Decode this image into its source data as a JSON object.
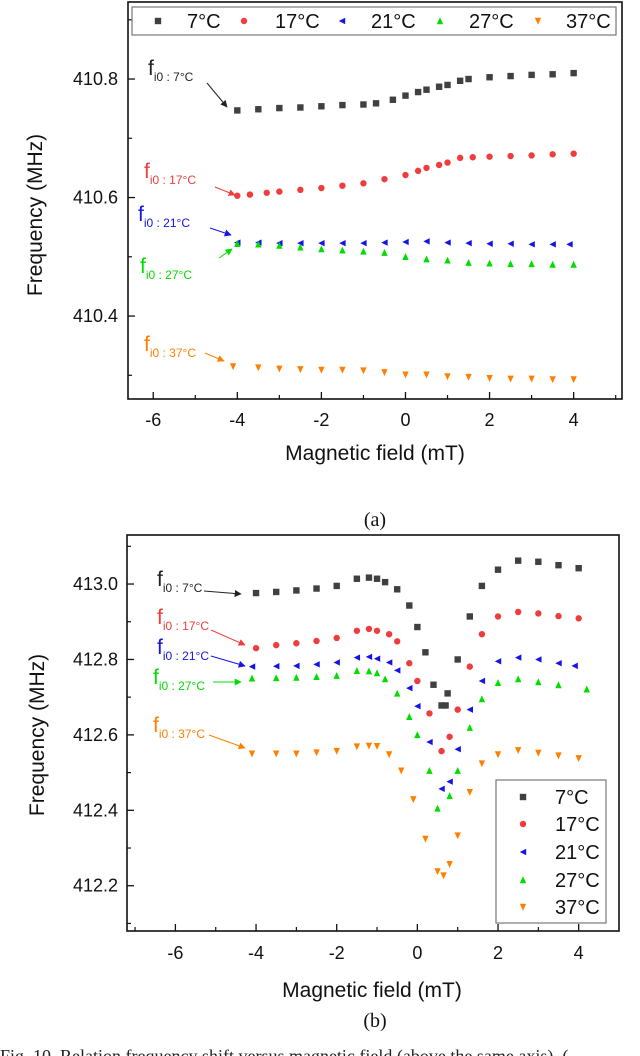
{
  "chart_data": [
    {
      "type": "scatter",
      "panel_label": "(a)",
      "xlabel": "Magnetic field (mT)",
      "ylabel": "Frequency (MHz)",
      "xlim": [
        -6.6,
        5.15
      ],
      "ylim": [
        410.26,
        410.93
      ],
      "xticks": [
        -6,
        -4,
        -2,
        0,
        2,
        4
      ],
      "xtick_labels": [
        "-6",
        "-4",
        "-2",
        "0",
        "2",
        "4"
      ],
      "yticks": [
        410.4,
        410.6,
        410.8
      ],
      "ytick_labels": [
        "410.4",
        "410.6",
        "410.8"
      ],
      "grid": false,
      "legend": {
        "placement": "top",
        "orientation": "horizontal"
      },
      "series": [
        {
          "name": "7°C",
          "marker": "square",
          "color": "#404040",
          "x": [
            -4,
            -3.5,
            -3,
            -2.5,
            -2,
            -1.5,
            -1,
            -0.7,
            -0.3,
            0,
            0.3,
            0.5,
            0.8,
            1,
            1.3,
            1.5,
            2,
            2.5,
            3,
            3.5,
            4
          ],
          "y": [
            410.747,
            410.749,
            410.751,
            410.752,
            410.754,
            410.756,
            410.757,
            410.759,
            410.765,
            410.772,
            410.778,
            410.782,
            410.787,
            410.79,
            410.797,
            410.8,
            410.803,
            410.805,
            410.807,
            410.808,
            410.81
          ]
        },
        {
          "name": "17°C",
          "marker": "circle",
          "color": "#f03c3c",
          "x": [
            -4,
            -3.7,
            -3.3,
            -3,
            -2.5,
            -2,
            -1.5,
            -1,
            -0.5,
            0,
            0.3,
            0.5,
            0.8,
            1,
            1.3,
            1.6,
            2,
            2.5,
            3,
            3.5,
            4
          ],
          "y": [
            410.603,
            410.605,
            410.608,
            410.61,
            410.613,
            410.616,
            410.62,
            410.624,
            410.631,
            410.638,
            410.645,
            410.65,
            410.655,
            410.659,
            410.667,
            410.668,
            410.669,
            410.67,
            410.671,
            410.673,
            410.674
          ]
        },
        {
          "name": "21°C",
          "marker": "triangle-left",
          "color": "#1414e6",
          "x": [
            -4,
            -3.5,
            -3,
            -2.5,
            -2,
            -1.5,
            -1,
            -0.5,
            0,
            0.5,
            1,
            1.5,
            2,
            2.5,
            3,
            3.5,
            3.9
          ],
          "y": [
            410.524,
            410.524,
            410.523,
            410.523,
            410.523,
            410.523,
            410.523,
            410.524,
            410.525,
            410.526,
            410.524,
            410.523,
            410.522,
            410.522,
            410.521,
            410.521,
            410.521
          ]
        },
        {
          "name": "27°C",
          "marker": "triangle-up",
          "color": "#00dd00",
          "x": [
            -4,
            -3.5,
            -3,
            -2.5,
            -2,
            -1.5,
            -1,
            -0.5,
            0,
            0.5,
            1,
            1.5,
            2,
            2.5,
            3,
            3.5,
            4
          ],
          "y": [
            410.522,
            410.521,
            410.519,
            410.516,
            410.513,
            410.511,
            410.509,
            410.507,
            410.5,
            410.496,
            410.494,
            410.49,
            410.489,
            410.488,
            410.488,
            410.487,
            410.487
          ]
        },
        {
          "name": "37°C",
          "marker": "triangle-down",
          "color": "#ff8000",
          "x": [
            -4.1,
            -3.5,
            -3,
            -2.5,
            -2,
            -1.5,
            -1,
            -0.5,
            0,
            0.5,
            1,
            1.5,
            2,
            2.5,
            3,
            3.5,
            4
          ],
          "y": [
            410.315,
            410.313,
            410.311,
            410.31,
            410.309,
            410.309,
            410.308,
            410.305,
            410.301,
            410.301,
            410.298,
            410.297,
            410.295,
            410.294,
            410.294,
            410.293,
            410.293
          ]
        }
      ],
      "annotations": [
        {
          "f": "f",
          "sub": "i0 : 7°C",
          "color": "#222222"
        },
        {
          "f": "f",
          "sub": "i0 : 17°C",
          "color": "#f03c3c"
        },
        {
          "f": "f",
          "sub": "i0 : 21°C",
          "color": "#1414e6"
        },
        {
          "f": "f",
          "sub": "i0 : 27°C",
          "color": "#00dd00"
        },
        {
          "f": "f",
          "sub": "i0 : 37°C",
          "color": "#ff8000"
        }
      ]
    },
    {
      "type": "scatter",
      "panel_label": "(b)",
      "xlabel": "Magnetic field (mT)",
      "ylabel": "Frequency (MHz)",
      "xlim": [
        -7.2,
        5.0
      ],
      "ylim": [
        412.08,
        413.13
      ],
      "xticks": [
        -6,
        -4,
        -2,
        0,
        2,
        4
      ],
      "xtick_labels": [
        "-6",
        "-4",
        "-2",
        "0",
        "2",
        "4"
      ],
      "yticks": [
        412.2,
        412.4,
        412.6,
        412.8,
        413.0
      ],
      "ytick_labels": [
        "412.2",
        "412.4",
        "412.6",
        "412.8",
        "413.0"
      ],
      "grid": false,
      "legend": {
        "placement": "bottom-right",
        "orientation": "vertical"
      },
      "series": [
        {
          "name": "7°C",
          "marker": "square",
          "color": "#404040",
          "x": [
            -4,
            -3.5,
            -3,
            -2.5,
            -2,
            -1.5,
            -1.2,
            -1,
            -0.8,
            -0.5,
            -0.2,
            0,
            0.2,
            0.4,
            0.6,
            0.7,
            0.75,
            1,
            1.3,
            1.6,
            2,
            2.5,
            3,
            3.5,
            4
          ],
          "y": [
            412.976,
            412.979,
            412.983,
            412.988,
            412.995,
            413.014,
            413.017,
            413.014,
            413.005,
            412.986,
            412.943,
            412.886,
            412.819,
            412.733,
            412.678,
            412.678,
            412.71,
            412.8,
            412.914,
            412.995,
            413.038,
            413.062,
            413.059,
            413.05,
            413.042
          ]
        },
        {
          "name": "17°C",
          "marker": "circle",
          "color": "#f03c3c",
          "x": [
            -4,
            -3.5,
            -3,
            -2.5,
            -2,
            -1.5,
            -1.2,
            -1,
            -0.7,
            -0.5,
            -0.2,
            0,
            0.3,
            0.6,
            0.8,
            1,
            1.3,
            1.6,
            2,
            2.5,
            3,
            3.5,
            4
          ],
          "y": [
            412.83,
            412.838,
            412.843,
            412.849,
            412.857,
            412.876,
            412.881,
            412.876,
            412.867,
            412.848,
            412.79,
            412.743,
            412.657,
            412.557,
            412.595,
            412.667,
            412.781,
            412.867,
            412.914,
            412.926,
            412.922,
            412.915,
            412.909
          ]
        },
        {
          "name": "21°C",
          "marker": "triangle-left",
          "color": "#1414e6",
          "x": [
            -4.1,
            -3.5,
            -3,
            -2.5,
            -2,
            -1.5,
            -1.2,
            -1,
            -0.7,
            -0.5,
            -0.2,
            0,
            0.3,
            0.6,
            0.8,
            1,
            1.3,
            1.6,
            2,
            2.5,
            3,
            3.5,
            3.9
          ],
          "y": [
            412.781,
            412.782,
            412.783,
            412.787,
            412.792,
            412.805,
            412.807,
            412.802,
            412.792,
            412.771,
            412.724,
            412.676,
            412.581,
            412.457,
            412.476,
            412.562,
            412.667,
            412.743,
            412.795,
            412.805,
            412.8,
            412.79,
            412.783
          ]
        },
        {
          "name": "27°C",
          "marker": "triangle-up",
          "color": "#00dd00",
          "x": [
            -4.1,
            -3.5,
            -3,
            -2.5,
            -2,
            -1.5,
            -1.2,
            -1,
            -0.8,
            -0.5,
            -0.2,
            0,
            0.3,
            0.5,
            0.8,
            1,
            1.3,
            1.6,
            2,
            2.5,
            3,
            3.5,
            4.2
          ],
          "y": [
            412.75,
            412.751,
            412.752,
            412.754,
            412.757,
            412.77,
            412.769,
            412.764,
            412.748,
            412.71,
            412.648,
            412.6,
            412.505,
            412.405,
            412.438,
            412.505,
            412.619,
            412.695,
            412.738,
            412.748,
            412.74,
            412.732,
            412.721
          ]
        },
        {
          "name": "37°C",
          "marker": "triangle-down",
          "color": "#ff8000",
          "x": [
            -4.1,
            -3.5,
            -3,
            -2.5,
            -2,
            -1.5,
            -1.2,
            -1,
            -0.7,
            -0.4,
            -0.1,
            0.2,
            0.5,
            0.65,
            0.8,
            1,
            1.3,
            1.6,
            2,
            2.5,
            3,
            3.5,
            4
          ],
          "y": [
            412.55,
            412.55,
            412.55,
            412.553,
            412.557,
            412.569,
            412.571,
            412.57,
            412.548,
            412.505,
            412.429,
            412.324,
            412.238,
            412.227,
            412.257,
            412.333,
            412.448,
            412.524,
            412.548,
            412.559,
            412.552,
            412.545,
            412.538
          ]
        }
      ],
      "annotations": [
        {
          "f": "f",
          "sub": "i0 : 7°C",
          "color": "#222222"
        },
        {
          "f": "f",
          "sub": "i0 : 17°C",
          "color": "#f03c3c"
        },
        {
          "f": "f",
          "sub": "i0 : 21°C",
          "color": "#1414e6"
        },
        {
          "f": "f",
          "sub": "i0 : 27°C",
          "color": "#00dd00"
        },
        {
          "f": "f",
          "sub": "i0 : 37°C",
          "color": "#ff8000"
        }
      ]
    }
  ],
  "caption": "Fig. 10.  Relation frequency shift versus magnetic field (above the same axis), ("
}
